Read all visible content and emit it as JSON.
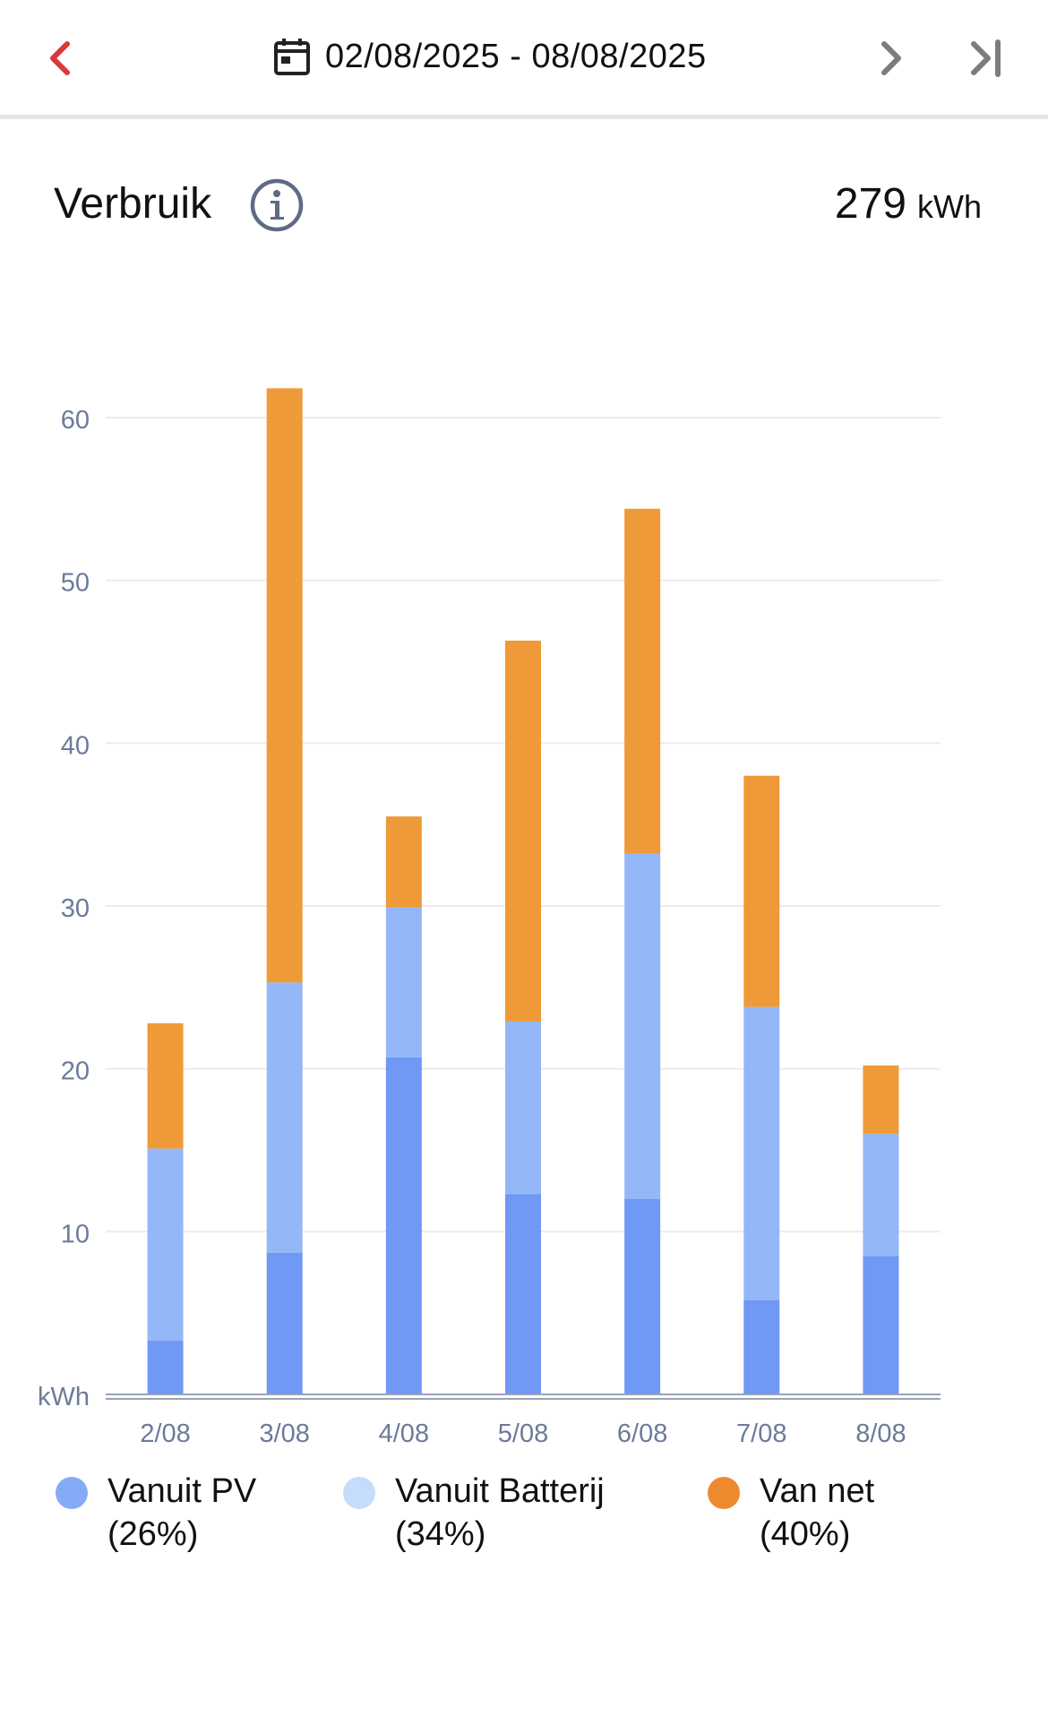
{
  "header": {
    "date_range": "02/08/2025 - 08/08/2025",
    "prev_icon": "chevron-left-icon",
    "calendar_icon": "calendar-icon",
    "next_icon": "chevron-right-icon",
    "last_icon": "skip-to-end-icon"
  },
  "summary": {
    "title": "Verbruik",
    "info_icon": "info-icon",
    "total_value": "279",
    "total_unit": "kWh"
  },
  "legend": [
    {
      "line1": "Vanuit PV",
      "line2": "(26%)",
      "color": "#86abf6"
    },
    {
      "line1": "Vanuit Batterij",
      "line2": "(34%)",
      "color": "#c6dcfb"
    },
    {
      "line1": "Van net",
      "line2": "(40%)",
      "color": "#ee8a2e"
    }
  ],
  "colors": {
    "accent_red": "#d9383a",
    "pv": "#7098f5",
    "battery": "#94b8f7",
    "grid": "#ef9a38",
    "axis_text": "#6c7b99"
  },
  "chart_data": {
    "type": "bar",
    "stacked": true,
    "categories": [
      "2/08",
      "3/08",
      "4/08",
      "5/08",
      "6/08",
      "7/08",
      "8/08"
    ],
    "series": [
      {
        "name": "Vanuit PV",
        "values": [
          3.3,
          8.7,
          20.7,
          12.3,
          12.0,
          5.8,
          8.5
        ]
      },
      {
        "name": "Vanuit Batterij",
        "values": [
          11.8,
          16.6,
          9.2,
          10.6,
          21.2,
          18.0,
          7.5
        ]
      },
      {
        "name": "Van net",
        "values": [
          7.7,
          36.5,
          5.6,
          23.4,
          21.2,
          14.2,
          4.2
        ]
      }
    ],
    "ylabel": "kWh",
    "yticks": [
      10,
      20,
      30,
      40,
      50,
      60
    ],
    "ylim": [
      0,
      60
    ],
    "grid": true,
    "legend_position": "bottom"
  }
}
